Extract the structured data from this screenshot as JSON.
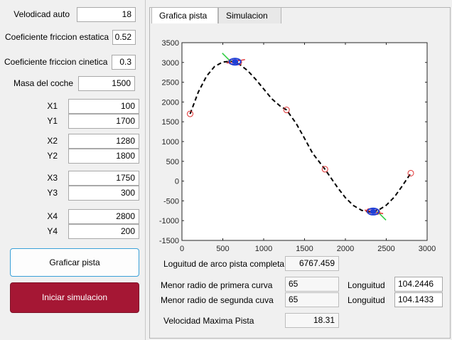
{
  "inputs": {
    "velocidad_label": "Velodicad auto",
    "velocidad_value": "18",
    "fric_est_label": "Coeficiente friccion estatica",
    "fric_est_value": "0.52",
    "fric_cin_label": "Coeficiente friccion cinetica",
    "fric_cin_value": "0.3",
    "masa_label": "Masa del coche",
    "masa_value": "1500",
    "points": [
      {
        "xl": "X1",
        "xv": "100",
        "yl": "Y1",
        "yv": "1700"
      },
      {
        "xl": "X2",
        "xv": "1280",
        "yl": "Y2",
        "yv": "1800"
      },
      {
        "xl": "X3",
        "xv": "1750",
        "yl": "Y3",
        "yv": "300"
      },
      {
        "xl": "X4",
        "xv": "2800",
        "yl": "Y4",
        "yv": "200"
      }
    ]
  },
  "buttons": {
    "graficar": "Graficar pista",
    "iniciar": "Iniciar simulacion"
  },
  "tabs": [
    "Grafica pista",
    "Simulacion"
  ],
  "results": {
    "arco_label": "Loguitud de arco pista completa",
    "arco_value": "6767.459",
    "radio1_label": "Menor radio de primera curva",
    "radio1_value": "65",
    "radio2_label": "Menor radio de segunda cuva",
    "radio2_value": "65",
    "long_label": "Longuitud",
    "long1_value": "104.2446",
    "long2_value": "104.1433",
    "vmax_label": "Velocidad Maxima Pista",
    "vmax_value": "18.31"
  },
  "colors": {
    "accent": "#3aa0d8",
    "danger": "#a51734",
    "marker": "#e03030",
    "car": "#1f3fd6"
  },
  "chart_data": {
    "type": "line",
    "xlim": [
      0,
      3000
    ],
    "ylim": [
      -1500,
      3500
    ],
    "xticks": [
      "0",
      "500",
      "1000",
      "1500",
      "2000",
      "2500",
      "3000"
    ],
    "yticks": [
      "3500",
      "3000",
      "2500",
      "2000",
      "1500",
      "1000",
      "500",
      "0",
      "-500",
      "-1000",
      "-1500"
    ],
    "grid": false,
    "control_points": [
      {
        "x": 100,
        "y": 1700
      },
      {
        "x": 1280,
        "y": 1800
      },
      {
        "x": 1750,
        "y": 300
      },
      {
        "x": 2800,
        "y": 200
      }
    ],
    "extra_markers": [
      {
        "x": 600,
        "y": 3020
      },
      {
        "x": 700,
        "y": 3000
      },
      {
        "x": 2290,
        "y": -760
      },
      {
        "x": 2390,
        "y": -780
      }
    ],
    "curve": [
      {
        "x": 100,
        "y": 1700
      },
      {
        "x": 200,
        "y": 2250
      },
      {
        "x": 300,
        "y": 2650
      },
      {
        "x": 400,
        "y": 2900
      },
      {
        "x": 500,
        "y": 3010
      },
      {
        "x": 600,
        "y": 3030
      },
      {
        "x": 700,
        "y": 2960
      },
      {
        "x": 800,
        "y": 2800
      },
      {
        "x": 900,
        "y": 2580
      },
      {
        "x": 1000,
        "y": 2330
      },
      {
        "x": 1100,
        "y": 2080
      },
      {
        "x": 1200,
        "y": 1900
      },
      {
        "x": 1280,
        "y": 1800
      },
      {
        "x": 1400,
        "y": 1450
      },
      {
        "x": 1500,
        "y": 1080
      },
      {
        "x": 1600,
        "y": 700
      },
      {
        "x": 1750,
        "y": 300
      },
      {
        "x": 1900,
        "y": -150
      },
      {
        "x": 2000,
        "y": -420
      },
      {
        "x": 2100,
        "y": -620
      },
      {
        "x": 2200,
        "y": -740
      },
      {
        "x": 2300,
        "y": -780
      },
      {
        "x": 2400,
        "y": -740
      },
      {
        "x": 2500,
        "y": -610
      },
      {
        "x": 2600,
        "y": -400
      },
      {
        "x": 2700,
        "y": -110
      },
      {
        "x": 2800,
        "y": 200
      }
    ]
  }
}
